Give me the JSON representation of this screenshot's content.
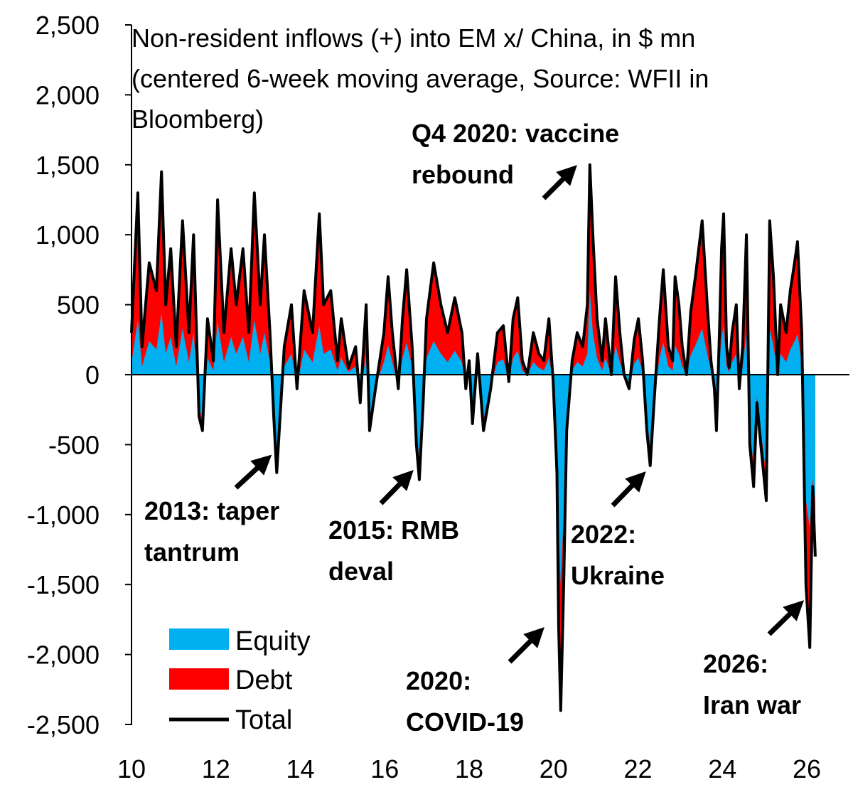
{
  "chart_data": {
    "type": "area",
    "title_lines": [
      "Non-resident inflows (+) into EM x/ China, in $ mn",
      "(centered 6-week moving average, Source: WFII in",
      "Bloomberg)"
    ],
    "xlabel": "",
    "ylabel": "",
    "xlim": [
      10,
      27
    ],
    "ylim": [
      -2500,
      2500
    ],
    "x_ticks": [
      10,
      12,
      14,
      16,
      18,
      20,
      22,
      24,
      26
    ],
    "x_tick_labels": [
      "10",
      "12",
      "14",
      "16",
      "18",
      "20",
      "22",
      "24",
      "26"
    ],
    "y_ticks": [
      2500,
      2000,
      1500,
      1000,
      500,
      0,
      -500,
      -1000,
      -1500,
      -2000,
      -2500
    ],
    "y_tick_labels": [
      "2,500",
      "2,000",
      "1,500",
      "1,000",
      "500",
      "0",
      "-500",
      "-1,000",
      "-1,500",
      "-2,000",
      "-2,500"
    ],
    "grid": false,
    "legend_position": "bottom-left",
    "x": [
      10.0,
      10.15,
      10.25,
      10.42,
      10.59,
      10.71,
      10.81,
      10.93,
      11.06,
      11.21,
      11.36,
      11.47,
      11.6,
      11.68,
      11.8,
      11.94,
      12.04,
      12.19,
      12.36,
      12.48,
      12.64,
      12.78,
      12.91,
      13.05,
      13.15,
      13.28,
      13.37,
      13.44,
      13.54,
      13.62,
      13.79,
      13.92,
      14.09,
      14.29,
      14.45,
      14.55,
      14.72,
      14.88,
      14.97,
      15.14,
      15.31,
      15.42,
      15.56,
      15.64,
      15.78,
      15.98,
      16.08,
      16.18,
      16.32,
      16.42,
      16.52,
      16.65,
      16.75,
      16.82,
      16.91,
      16.99,
      17.16,
      17.33,
      17.49,
      17.66,
      17.83,
      17.92,
      18.0,
      18.08,
      18.2,
      18.34,
      18.51,
      18.67,
      18.81,
      18.94,
      19.04,
      19.15,
      19.26,
      19.38,
      19.52,
      19.65,
      19.77,
      19.89,
      19.99,
      20.08,
      20.12,
      20.17,
      20.24,
      20.31,
      20.44,
      20.56,
      20.69,
      20.8,
      20.86,
      20.93,
      21.03,
      21.15,
      21.23,
      21.37,
      21.47,
      21.57,
      21.67,
      21.79,
      21.91,
      22.01,
      22.11,
      22.21,
      22.29,
      22.38,
      22.51,
      22.6,
      22.72,
      22.82,
      22.88,
      22.97,
      23.05,
      23.15,
      23.25,
      23.36,
      23.52,
      23.64,
      23.73,
      23.81,
      23.86,
      23.93,
      23.98,
      24.03,
      24.1,
      24.16,
      24.23,
      24.33,
      24.4,
      24.48,
      24.57,
      24.65,
      24.74,
      24.82,
      24.91,
      25.04,
      25.12,
      25.21,
      25.31,
      25.38,
      25.51,
      25.61,
      25.71,
      25.78,
      25.88,
      25.98,
      26.07,
      26.14,
      26.2
    ],
    "series": [
      {
        "name": "Equity",
        "color": "#00B0F0",
        "values": [
          90,
          390,
          60,
          240,
          180,
          440,
          150,
          270,
          60,
          330,
          90,
          300,
          -240,
          -320,
          120,
          30,
          380,
          90,
          270,
          150,
          270,
          90,
          390,
          150,
          300,
          90,
          -240,
          -560,
          -160,
          60,
          150,
          -80,
          180,
          90,
          350,
          150,
          180,
          30,
          120,
          20,
          60,
          -160,
          150,
          -320,
          -80,
          90,
          210,
          90,
          -80,
          120,
          230,
          60,
          -400,
          -600,
          -160,
          120,
          240,
          150,
          90,
          170,
          90,
          -80,
          30,
          -280,
          50,
          -320,
          -80,
          90,
          110,
          -40,
          120,
          170,
          30,
          0,
          90,
          50,
          30,
          120,
          -40,
          -560,
          -1100,
          -1500,
          -1000,
          -320,
          30,
          90,
          60,
          150,
          600,
          300,
          120,
          30,
          120,
          0,
          210,
          90,
          0,
          -80,
          80,
          120,
          30,
          -320,
          -520,
          -160,
          120,
          230,
          60,
          30,
          210,
          150,
          60,
          0,
          140,
          210,
          330,
          150,
          30,
          -80,
          -320,
          90,
          270,
          350,
          60,
          20,
          90,
          150,
          -80,
          60,
          300,
          -400,
          -640,
          -160,
          -400,
          -720,
          330,
          210,
          0,
          150,
          90,
          180,
          240,
          290,
          90,
          -900,
          -1100,
          -750,
          -900
        ]
      },
      {
        "name": "Debt",
        "color": "#FF0000",
        "values": [
          210,
          910,
          140,
          560,
          420,
          1010,
          350,
          630,
          140,
          770,
          210,
          700,
          -60,
          -80,
          280,
          70,
          870,
          210,
          630,
          350,
          630,
          210,
          910,
          350,
          700,
          210,
          -60,
          -140,
          -40,
          140,
          350,
          -20,
          420,
          210,
          800,
          350,
          420,
          70,
          280,
          30,
          140,
          -40,
          350,
          -80,
          -20,
          210,
          490,
          210,
          -20,
          280,
          520,
          140,
          -100,
          -150,
          -40,
          280,
          560,
          350,
          210,
          380,
          210,
          -20,
          70,
          -70,
          100,
          -80,
          -20,
          210,
          240,
          -10,
          280,
          380,
          70,
          0,
          210,
          100,
          70,
          280,
          -10,
          -140,
          -700,
          -900,
          -500,
          -80,
          70,
          210,
          140,
          350,
          900,
          700,
          280,
          70,
          280,
          0,
          490,
          210,
          0,
          -20,
          170,
          280,
          70,
          -80,
          -130,
          -40,
          280,
          520,
          140,
          70,
          490,
          350,
          140,
          0,
          310,
          490,
          770,
          350,
          70,
          -20,
          -80,
          210,
          630,
          800,
          140,
          30,
          210,
          350,
          -20,
          140,
          700,
          -100,
          -160,
          -40,
          -100,
          -180,
          770,
          490,
          0,
          350,
          210,
          420,
          560,
          660,
          210,
          -600,
          -850,
          -50,
          -400
        ]
      },
      {
        "name": "Total",
        "color": "#000000",
        "values": [
          300,
          1300,
          200,
          800,
          600,
          1450,
          500,
          900,
          200,
          1100,
          300,
          1000,
          -300,
          -400,
          400,
          100,
          1250,
          300,
          900,
          500,
          900,
          300,
          1300,
          500,
          1000,
          300,
          -300,
          -700,
          -200,
          200,
          500,
          -100,
          600,
          300,
          1150,
          500,
          600,
          100,
          400,
          50,
          200,
          -200,
          500,
          -400,
          -100,
          300,
          700,
          300,
          -100,
          400,
          750,
          200,
          -500,
          -750,
          -200,
          400,
          800,
          500,
          300,
          550,
          300,
          -100,
          100,
          -350,
          150,
          -400,
          -100,
          300,
          350,
          -50,
          400,
          550,
          100,
          0,
          300,
          150,
          100,
          400,
          -50,
          -700,
          -1800,
          -2400,
          -1500,
          -400,
          100,
          300,
          200,
          500,
          1500,
          1000,
          400,
          100,
          400,
          0,
          700,
          300,
          0,
          -100,
          250,
          400,
          100,
          -400,
          -650,
          -200,
          400,
          750,
          200,
          100,
          700,
          500,
          200,
          0,
          450,
          700,
          1100,
          500,
          100,
          -100,
          -400,
          300,
          900,
          1150,
          200,
          50,
          300,
          500,
          -100,
          200,
          1000,
          -500,
          -800,
          -200,
          -500,
          -900,
          1100,
          700,
          0,
          500,
          300,
          600,
          800,
          950,
          300,
          -1500,
          -1950,
          -800,
          -1300
        ]
      }
    ],
    "annotations": [
      {
        "lines": [
          "2013: taper",
          "tantrum"
        ],
        "x": 13.44,
        "y": -700
      },
      {
        "lines": [
          "2015: RMB",
          "deval"
        ],
        "x": 16.82,
        "y": -750
      },
      {
        "lines": [
          "Q4 2020: vaccine",
          "rebound"
        ],
        "x": 20.86,
        "y": 1500
      },
      {
        "lines": [
          "2020:",
          "COVID-19"
        ],
        "x": 20.17,
        "y": -2400
      },
      {
        "lines": [
          "2022:",
          "Ukraine"
        ],
        "x": 22.29,
        "y": -650
      },
      {
        "lines": [
          "2026:",
          "Iran war"
        ],
        "x": 26.07,
        "y": -1950
      }
    ],
    "legend": [
      "Equity",
      "Debt",
      "Total"
    ]
  }
}
